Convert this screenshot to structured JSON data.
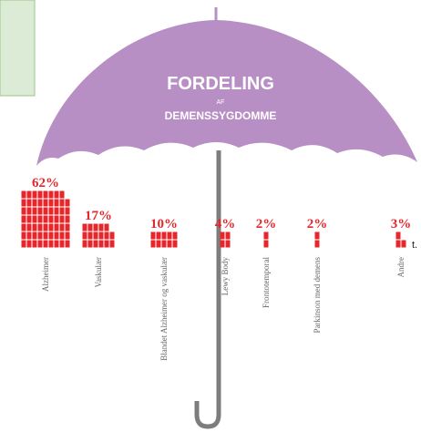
{
  "chart_data": {
    "type": "pictogram",
    "title": "FORDELING",
    "title_connector": "AF",
    "subtitle": "DEMENSSYGDOMME",
    "categories": [
      "Alzheimer",
      "Vaskulær",
      "Blandet Alzheimer og vaskulær",
      "Lewy Body",
      "Frontotemporal",
      "Parkinson med demens",
      "Andre"
    ],
    "values": [
      62,
      17,
      10,
      4,
      2,
      2,
      3
    ],
    "value_labels": [
      "62%",
      "17%",
      "10%",
      "4%",
      "2%",
      "2%",
      "3%"
    ],
    "color": "#e5262b"
  },
  "fragment": "t."
}
